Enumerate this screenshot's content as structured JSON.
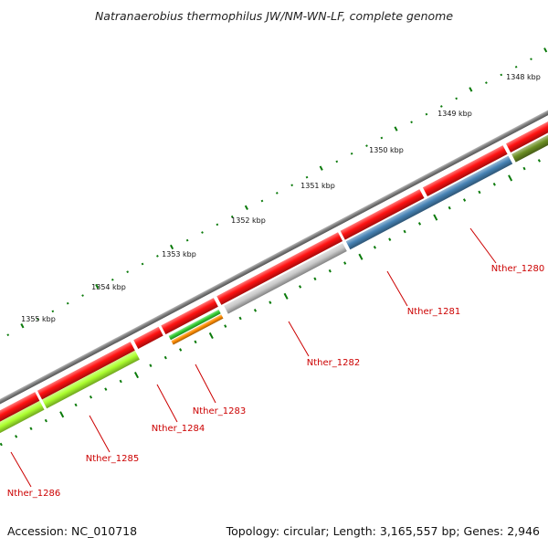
{
  "title": "Natranaerobius thermophilus JW/NM-WN-LF, complete genome",
  "footer": {
    "accession": "Accession: NC_010718",
    "summary": "Topology: circular; Length: 3,165,557 bp; Genes: 2,946"
  },
  "scale_labels": [
    "1348 kbp",
    "1349 kbp",
    "1350 kbp",
    "1351 kbp",
    "1352 kbp",
    "1353 kbp",
    "1354 kbp",
    "1355 kbp"
  ],
  "gene_labels": [
    "Nther_1280",
    "Nther_1281",
    "Nther_1282",
    "Nther_1283",
    "Nther_1284",
    "Nther_1285",
    "Nther_1286"
  ],
  "colors": {
    "backbone": "#808080",
    "cds_red": "#ff1111",
    "tick_green": "#0a7a0a",
    "label_red": "#cc0000",
    "Nther_1280": "#6b8e23",
    "Nther_1281": "#4682b4",
    "Nther_1282": "#c8c8c8",
    "Nther_1283_a": "#32cd32",
    "Nther_1283_b": "#ff8c00",
    "Nther_1285": "#adff2f"
  }
}
